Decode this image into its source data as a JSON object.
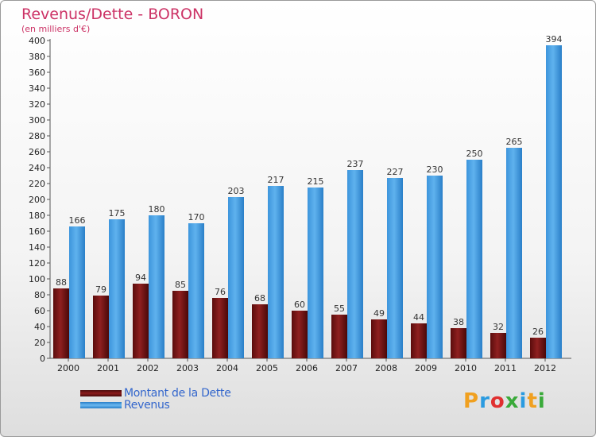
{
  "chart_data": {
    "type": "bar",
    "title": "Revenus/Dette - BORON",
    "subtitle": "(en milliers d'€)",
    "categories": [
      "2000",
      "2001",
      "2002",
      "2003",
      "2004",
      "2005",
      "2006",
      "2007",
      "2008",
      "2009",
      "2010",
      "2011",
      "2012"
    ],
    "series": [
      {
        "name": "Montant de la Dette",
        "color": "#8b1a1a",
        "values": [
          88,
          79,
          94,
          85,
          76,
          68,
          60,
          55,
          49,
          44,
          38,
          32,
          26
        ]
      },
      {
        "name": "Revenus",
        "color": "#4ea6e6",
        "values": [
          166,
          175,
          180,
          170,
          203,
          217,
          215,
          237,
          227,
          230,
          250,
          265,
          394
        ]
      }
    ],
    "ylim": [
      0,
      400
    ],
    "ytick_step": 20,
    "grid": false,
    "legend_position": "bottom-left"
  },
  "brand": {
    "letters": [
      "P",
      "r",
      "o",
      "x",
      "i",
      "t",
      "i"
    ],
    "colors": [
      "#f0a020",
      "#2b9be0",
      "#e03030",
      "#3aaa3a",
      "#2b9be0",
      "#f0a020",
      "#3aaa3a"
    ]
  }
}
